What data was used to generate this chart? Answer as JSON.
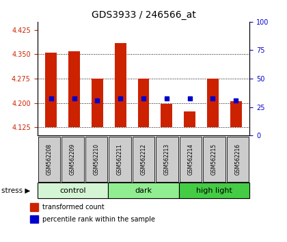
{
  "title": "GDS3933 / 246566_at",
  "samples": [
    "GSM562208",
    "GSM562209",
    "GSM562210",
    "GSM562211",
    "GSM562212",
    "GSM562213",
    "GSM562214",
    "GSM562215",
    "GSM562216"
  ],
  "bar_bottoms": [
    4.125,
    4.125,
    4.125,
    4.125,
    4.125,
    4.125,
    4.125,
    4.125,
    4.125
  ],
  "bar_tops": [
    4.355,
    4.36,
    4.275,
    4.385,
    4.275,
    4.197,
    4.175,
    4.275,
    4.205
  ],
  "blue_values": [
    4.215,
    4.215,
    4.207,
    4.215,
    4.215,
    4.215,
    4.215,
    4.215,
    4.207
  ],
  "ylim_left": [
    4.1,
    4.45
  ],
  "yticks_left": [
    4.125,
    4.2,
    4.275,
    4.35,
    4.425
  ],
  "yticks_right": [
    0,
    25,
    50,
    75,
    100
  ],
  "bar_color": "#cc2200",
  "blue_color": "#0000cc",
  "groups": [
    {
      "label": "control",
      "start": 0,
      "end": 3,
      "color": "#d4f5d4"
    },
    {
      "label": "dark",
      "start": 3,
      "end": 6,
      "color": "#90ee90"
    },
    {
      "label": "high light",
      "start": 6,
      "end": 9,
      "color": "#44cc44"
    }
  ],
  "stress_label": "stress",
  "legend_red_label": "transformed count",
  "legend_blue_label": "percentile rank within the sample",
  "bg_color": "#ffffff",
  "plot_bg": "#ffffff",
  "grid_color": "#000000",
  "tick_label_color_left": "#cc2200",
  "tick_label_color_right": "#0000cc",
  "sample_box_color": "#cccccc"
}
